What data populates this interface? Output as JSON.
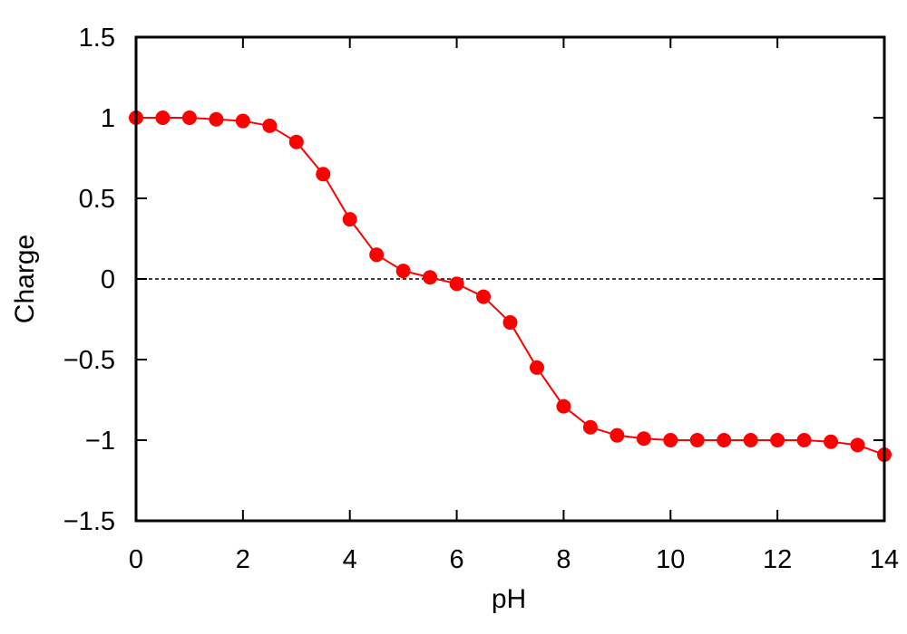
{
  "chart_data": {
    "type": "line",
    "xlabel": "pH",
    "ylabel": "Charge",
    "xlim": [
      0,
      14
    ],
    "ylim": [
      -1.5,
      1.5
    ],
    "xticks": [
      0,
      2,
      4,
      6,
      8,
      10,
      12,
      14
    ],
    "xtick_labels": [
      "0",
      "2",
      "4",
      "6",
      "8",
      "10",
      "12",
      "14"
    ],
    "yticks": [
      -1.5,
      -1,
      -0.5,
      0,
      0.5,
      1,
      1.5
    ],
    "ytick_labels": [
      "−1.5",
      "−1",
      "−0.5",
      "0",
      "0.5",
      "1",
      "1.5"
    ],
    "reference_line": {
      "y": 0,
      "style": "dashed",
      "color": "#000000"
    },
    "grid": false,
    "series": [
      {
        "color": "#ff0000",
        "marker": "circle",
        "x": [
          0,
          0.5,
          1,
          1.5,
          2,
          2.5,
          3,
          3.5,
          4,
          4.5,
          5,
          5.5,
          6,
          6.5,
          7,
          7.5,
          8,
          8.5,
          9,
          9.5,
          10,
          10.5,
          11,
          11.5,
          12,
          12.5,
          13,
          13.5,
          14
        ],
        "y": [
          1.0,
          1.0,
          1.0,
          0.99,
          0.98,
          0.95,
          0.85,
          0.65,
          0.37,
          0.15,
          0.05,
          0.01,
          -0.03,
          -0.11,
          -0.27,
          -0.55,
          -0.79,
          -0.92,
          -0.97,
          -0.99,
          -1.0,
          -1.0,
          -1.0,
          -1.0,
          -1.0,
          -1.0,
          -1.01,
          -1.03,
          -1.09
        ]
      }
    ]
  }
}
